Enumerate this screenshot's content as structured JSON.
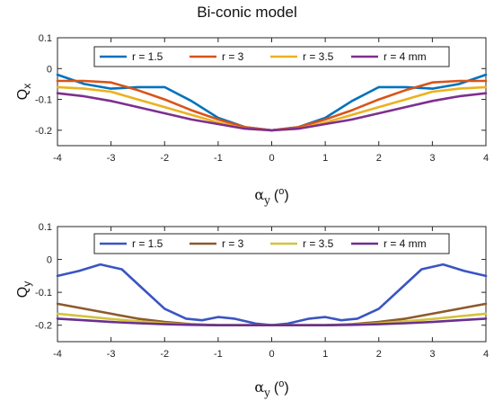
{
  "title": "Bi-conic model",
  "chart_data": [
    {
      "type": "line",
      "ylabel_main": "Q",
      "ylabel_sub": "x",
      "xlabel_main": "α",
      "xlabel_sub": "y",
      "xlabel_unit": "(o)",
      "xlim": [
        -4,
        4
      ],
      "ylim": [
        -0.25,
        0.1
      ],
      "xticks": [
        "-4",
        "-3",
        "-2",
        "-1",
        "0",
        "1",
        "2",
        "3",
        "4"
      ],
      "yticks": [
        "-0.2",
        "-0.1",
        "0",
        "0.1"
      ],
      "legend_position": "top",
      "series": [
        {
          "name": "r = 1.5",
          "color": "#0072BD",
          "x": [
            -4,
            -3.5,
            -3,
            -2.5,
            -2,
            -1.5,
            -1,
            -0.5,
            0,
            0.5,
            1,
            1.5,
            2,
            2.5,
            3,
            3.5,
            4
          ],
          "y": [
            -0.02,
            -0.05,
            -0.065,
            -0.06,
            -0.06,
            -0.105,
            -0.16,
            -0.19,
            -0.2,
            -0.19,
            -0.16,
            -0.105,
            -0.06,
            -0.06,
            -0.065,
            -0.05,
            -0.02
          ]
        },
        {
          "name": "r = 3",
          "color": "#D95319",
          "x": [
            -4,
            -3.5,
            -3,
            -2.5,
            -2,
            -1.5,
            -1,
            -0.5,
            0,
            0.5,
            1,
            1.5,
            2,
            2.5,
            3,
            3.5,
            4
          ],
          "y": [
            -0.04,
            -0.04,
            -0.045,
            -0.07,
            -0.1,
            -0.135,
            -0.165,
            -0.19,
            -0.2,
            -0.19,
            -0.165,
            -0.135,
            -0.1,
            -0.07,
            -0.045,
            -0.04,
            -0.04
          ]
        },
        {
          "name": "r = 3.5",
          "color": "#EDB120",
          "x": [
            -4,
            -3.5,
            -3,
            -2.5,
            -2,
            -1.5,
            -1,
            -0.5,
            0,
            0.5,
            1,
            1.5,
            2,
            2.5,
            3,
            3.5,
            4
          ],
          "y": [
            -0.06,
            -0.065,
            -0.075,
            -0.1,
            -0.125,
            -0.15,
            -0.175,
            -0.195,
            -0.2,
            -0.195,
            -0.175,
            -0.15,
            -0.125,
            -0.1,
            -0.075,
            -0.065,
            -0.06
          ]
        },
        {
          "name": "r = 4 mm",
          "color": "#7E2F8E",
          "x": [
            -4,
            -3.5,
            -3,
            -2.5,
            -2,
            -1.5,
            -1,
            -0.5,
            0,
            0.5,
            1,
            1.5,
            2,
            2.5,
            3,
            3.5,
            4
          ],
          "y": [
            -0.08,
            -0.09,
            -0.105,
            -0.125,
            -0.145,
            -0.165,
            -0.18,
            -0.195,
            -0.2,
            -0.195,
            -0.18,
            -0.165,
            -0.145,
            -0.125,
            -0.105,
            -0.09,
            -0.08
          ]
        }
      ]
    },
    {
      "type": "line",
      "ylabel_main": "Q",
      "ylabel_sub": "y",
      "xlabel_main": "α",
      "xlabel_sub": "y",
      "xlabel_unit": "(o)",
      "xlim": [
        -4,
        4
      ],
      "ylim": [
        -0.25,
        0.1
      ],
      "xticks": [
        "-4",
        "-3",
        "-2",
        "-1",
        "0",
        "1",
        "2",
        "3",
        "4"
      ],
      "yticks": [
        "-0.2",
        "-0.1",
        "0",
        "0.1"
      ],
      "legend_position": "top",
      "series": [
        {
          "name": "r = 1.5",
          "color": "#3A55C2",
          "x": [
            -4,
            -3.6,
            -3.2,
            -2.8,
            -2.4,
            -2,
            -1.6,
            -1.3,
            -1,
            -0.7,
            -0.3,
            0,
            0.3,
            0.7,
            1,
            1.3,
            1.6,
            2,
            2.4,
            2.8,
            3.2,
            3.6,
            4
          ],
          "y": [
            -0.05,
            -0.035,
            -0.015,
            -0.03,
            -0.09,
            -0.15,
            -0.18,
            -0.185,
            -0.175,
            -0.18,
            -0.195,
            -0.2,
            -0.195,
            -0.18,
            -0.175,
            -0.185,
            -0.18,
            -0.15,
            -0.09,
            -0.03,
            -0.015,
            -0.035,
            -0.05
          ]
        },
        {
          "name": "r = 3",
          "color": "#8C5A2B",
          "x": [
            -4,
            -3.5,
            -3,
            -2.5,
            -2,
            -1.5,
            -1,
            -0.5,
            0,
            0.5,
            1,
            1.5,
            2,
            2.5,
            3,
            3.5,
            4
          ],
          "y": [
            -0.135,
            -0.15,
            -0.165,
            -0.18,
            -0.19,
            -0.197,
            -0.2,
            -0.2,
            -0.2,
            -0.2,
            -0.2,
            -0.197,
            -0.19,
            -0.18,
            -0.165,
            -0.15,
            -0.135
          ]
        },
        {
          "name": "r = 3.5",
          "color": "#D4C43A",
          "x": [
            -4,
            -3.5,
            -3,
            -2.5,
            -2,
            -1.5,
            -1,
            -0.5,
            0,
            0.5,
            1,
            1.5,
            2,
            2.5,
            3,
            3.5,
            4
          ],
          "y": [
            -0.165,
            -0.173,
            -0.181,
            -0.188,
            -0.194,
            -0.198,
            -0.2,
            -0.2,
            -0.2,
            -0.2,
            -0.2,
            -0.198,
            -0.194,
            -0.188,
            -0.181,
            -0.173,
            -0.165
          ]
        },
        {
          "name": "r = 4 mm",
          "color": "#6B2F8F",
          "x": [
            -4,
            -3.5,
            -3,
            -2.5,
            -2,
            -1.5,
            -1,
            -0.5,
            0,
            0.5,
            1,
            1.5,
            2,
            2.5,
            3,
            3.5,
            4
          ],
          "y": [
            -0.18,
            -0.185,
            -0.19,
            -0.194,
            -0.197,
            -0.199,
            -0.2,
            -0.2,
            -0.2,
            -0.2,
            -0.2,
            -0.199,
            -0.197,
            -0.194,
            -0.19,
            -0.185,
            -0.18
          ]
        }
      ]
    }
  ]
}
